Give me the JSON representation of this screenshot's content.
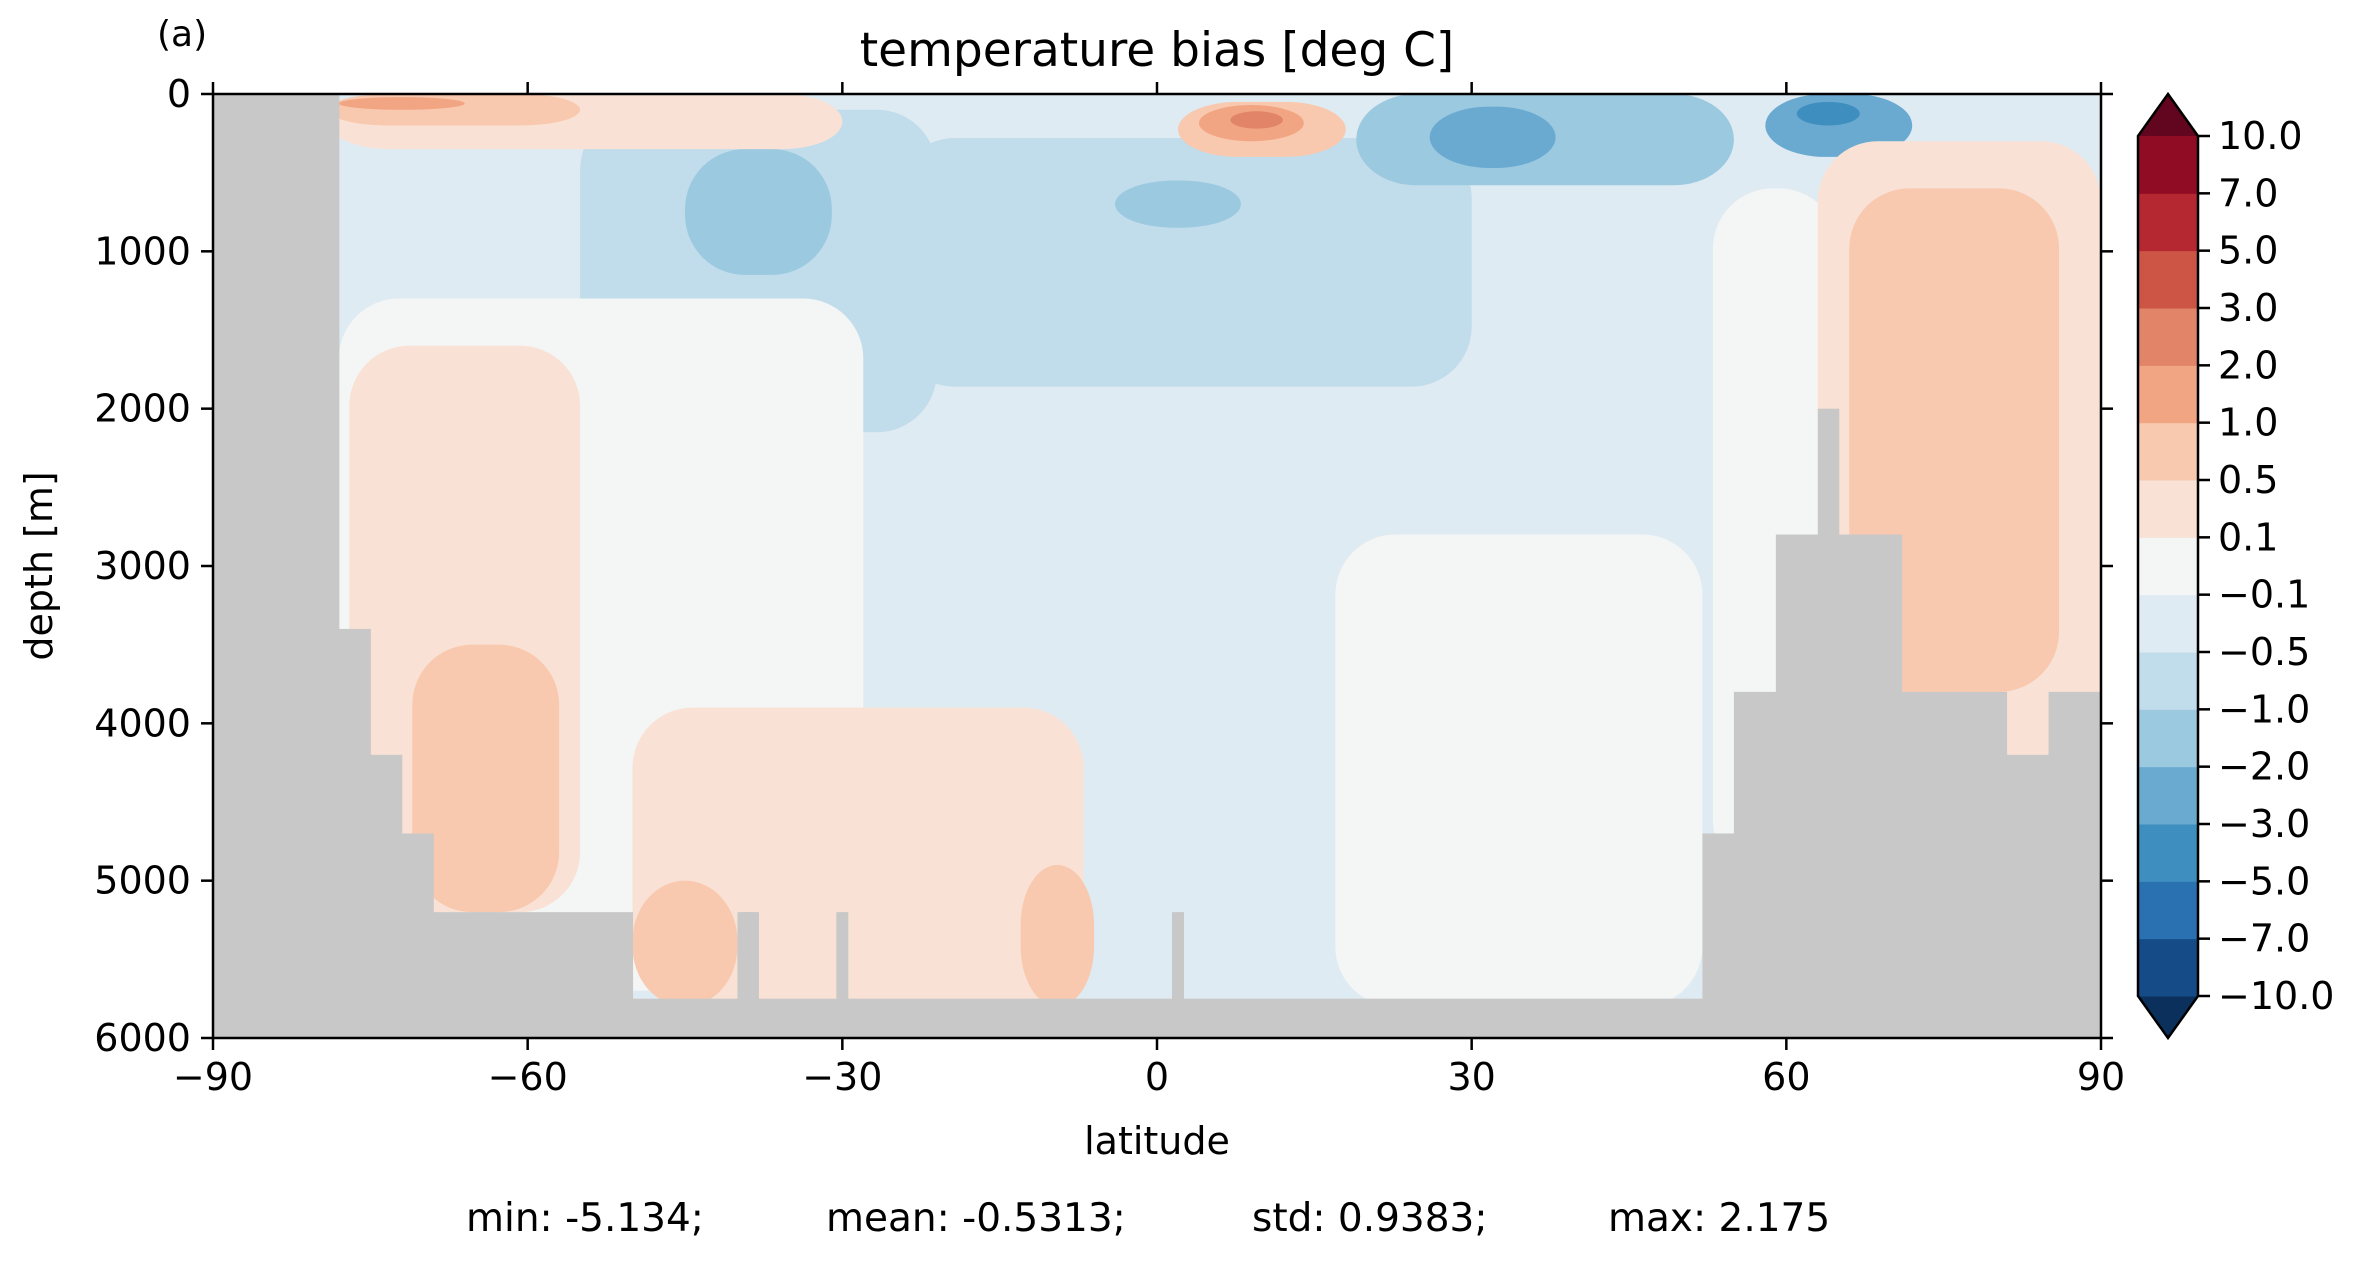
{
  "chart_data": {
    "type": "heatmap",
    "panel_label": "(a)",
    "title": "temperature bias [deg C]",
    "xlabel": "latitude",
    "ylabel": "depth [m]",
    "xlim": [
      -90,
      90
    ],
    "ylim": [
      6000,
      0
    ],
    "y_inverted": true,
    "xticks": [
      "−90",
      "−60",
      "−30",
      "0",
      "30",
      "60",
      "90"
    ],
    "xtick_values": [
      -90,
      -60,
      -30,
      0,
      30,
      60,
      90
    ],
    "yticks": [
      "0",
      "1000",
      "2000",
      "3000",
      "4000",
      "5000",
      "6000"
    ],
    "ytick_values": [
      0,
      1000,
      2000,
      3000,
      4000,
      5000,
      6000
    ],
    "mask_color": "#c8c8c8",
    "colorbar": {
      "extend": "both",
      "levels": [
        "−10.0",
        "−7.0",
        "−5.0",
        "−3.0",
        "−2.0",
        "−1.0",
        "−0.5",
        "−0.1",
        "0.1",
        "0.5",
        "1.0",
        "2.0",
        "3.0",
        "5.0",
        "7.0",
        "10.0"
      ],
      "level_values": [
        -10,
        -7,
        -5,
        -3,
        -2,
        -1,
        -0.5,
        -0.1,
        0.1,
        0.5,
        1,
        2,
        3,
        5,
        7,
        10
      ],
      "colors": [
        "#0b305b",
        "#154b87",
        "#2a71b2",
        "#3f8ec0",
        "#6aaad1",
        "#9bc9e0",
        "#c1dceb",
        "#dfebf2",
        "#f4f5f5",
        "#f9e2d5",
        "#f8c9ae",
        "#f2a583",
        "#e28467",
        "#cc5546",
        "#b52731",
        "#900c24",
        "#62051f"
      ]
    },
    "contours": [
      {
        "bin": "-0.5..-0.1",
        "value": -0.3,
        "region": "upper-ocean",
        "bounds_lat": [
          -78,
          90
        ],
        "bounds_depth": [
          0,
          3400
        ]
      },
      {
        "bin": "-1.0..-0.5",
        "value": -0.7,
        "region": "southern-thermocline",
        "bounds_lat": [
          -55,
          -21
        ],
        "bounds_depth": [
          100,
          2150
        ]
      },
      {
        "bin": "-1.0..-0.5",
        "value": -0.7,
        "region": "northern-thermocline",
        "bounds_lat": [
          -25,
          30
        ],
        "bounds_depth": [
          280,
          1860
        ]
      },
      {
        "bin": "-2.0..-1.0",
        "value": -1.5,
        "region": "southern-subsurface",
        "bounds_lat": [
          -45,
          -31
        ],
        "bounds_depth": [
          350,
          1150
        ]
      },
      {
        "bin": "-2.0..-1.0",
        "value": -1.5,
        "region": "northern-subsurface",
        "bounds_lat": [
          -4,
          8
        ],
        "bounds_depth": [
          550,
          850
        ]
      },
      {
        "bin": "-2.0..-1.0",
        "value": -1.5,
        "region": "northern-upper",
        "bounds_lat": [
          19,
          55
        ],
        "bounds_depth": [
          0,
          580
        ]
      },
      {
        "bin": "-3.0..-2.0",
        "value": -2.5,
        "region": "northern-upper",
        "bounds_lat": [
          26,
          38
        ],
        "bounds_depth": [
          80,
          470
        ]
      },
      {
        "bin": "-3.0..-2.0",
        "value": -2.5,
        "region": "arctic-upper",
        "bounds_lat": [
          58,
          72
        ],
        "bounds_depth": [
          0,
          400
        ]
      },
      {
        "bin": "-5.0..-3.0",
        "value": -4,
        "region": "arctic-upper",
        "bounds_lat": [
          61,
          67
        ],
        "bounds_depth": [
          50,
          200
        ]
      },
      {
        "bin": "-0.1..0.1",
        "value": 0,
        "region": "southern-deep",
        "bounds_lat": [
          -78,
          -28
        ],
        "bounds_depth": [
          1300,
          5700
        ]
      },
      {
        "bin": "-0.1..0.1",
        "value": 0,
        "region": "northern-deep",
        "bounds_lat": [
          17,
          52
        ],
        "bounds_depth": [
          2800,
          5800
        ]
      },
      {
        "bin": "-0.1..0.1",
        "value": 0,
        "region": "arctic-slope",
        "bounds_lat": [
          53,
          65
        ],
        "bounds_depth": [
          600,
          5000
        ]
      },
      {
        "bin": "0.1..0.5",
        "value": 0.3,
        "region": "southern-deep",
        "bounds_lat": [
          -77,
          -55
        ],
        "bounds_depth": [
          1600,
          5200
        ]
      },
      {
        "bin": "0.1..0.5",
        "value": 0.3,
        "region": "southern-abyss",
        "bounds_lat": [
          -50,
          -7
        ],
        "bounds_depth": [
          3900,
          5800
        ]
      },
      {
        "bin": "0.1..0.5",
        "value": 0.3,
        "region": "arctic-deep",
        "bounds_lat": [
          63,
          90
        ],
        "bounds_depth": [
          300,
          4300
        ]
      },
      {
        "bin": "0.1..0.5",
        "value": 0.3,
        "region": "southern-surface",
        "bounds_lat": [
          -79,
          -30
        ],
        "bounds_depth": [
          0,
          350
        ]
      },
      {
        "bin": "0.5..1.0",
        "value": 0.7,
        "region": "southern-deep",
        "bounds_lat": [
          -71,
          -57
        ],
        "bounds_depth": [
          3500,
          5200
        ]
      },
      {
        "bin": "0.5..1.0",
        "value": 0.7,
        "region": "southern-abyss",
        "bounds_lat": [
          -50,
          -40
        ],
        "bounds_depth": [
          5000,
          5800
        ]
      },
      {
        "bin": "0.5..1.0",
        "value": 0.7,
        "region": "equatorial-abyss",
        "bounds_lat": [
          -13,
          -6
        ],
        "bounds_depth": [
          4900,
          5800
        ]
      },
      {
        "bin": "0.5..1.0",
        "value": 0.7,
        "region": "arctic-deep",
        "bounds_lat": [
          66,
          86
        ],
        "bounds_depth": [
          600,
          3800
        ]
      },
      {
        "bin": "0.5..1.0",
        "value": 0.7,
        "region": "southern-surface",
        "bounds_lat": [
          -79,
          -55
        ],
        "bounds_depth": [
          0,
          200
        ]
      },
      {
        "bin": "0.5..1.0",
        "value": 0.7,
        "region": "equatorial-surface",
        "bounds_lat": [
          2,
          18
        ],
        "bounds_depth": [
          50,
          400
        ]
      },
      {
        "bin": "1.0..2.0",
        "value": 1.5,
        "region": "southern-surface",
        "bounds_lat": [
          -78,
          -66
        ],
        "bounds_depth": [
          20,
          100
        ]
      },
      {
        "bin": "1.0..2.0",
        "value": 1.5,
        "region": "equatorial-surface",
        "bounds_lat": [
          4,
          14
        ],
        "bounds_depth": [
          70,
          300
        ]
      },
      {
        "bin": "2.0..3.0",
        "value": 2.2,
        "region": "equatorial-surface",
        "bounds_lat": [
          7,
          12
        ],
        "bounds_depth": [
          110,
          220
        ]
      }
    ],
    "land_mask_depth_by_latitude": [
      {
        "lat_range": [
          -90,
          -78
        ],
        "depth": 0
      },
      {
        "lat_range": [
          -78,
          -77
        ],
        "depth": 3400
      },
      {
        "lat_range": [
          -77,
          -75
        ],
        "depth": 3400
      },
      {
        "lat_range": [
          -75,
          -72
        ],
        "depth": 4200
      },
      {
        "lat_range": [
          -72,
          -69
        ],
        "depth": 4700
      },
      {
        "lat_range": [
          -69,
          -59
        ],
        "depth": 5200
      },
      {
        "lat_range": [
          -59,
          -50
        ],
        "depth": 5200
      },
      {
        "lat_range": [
          -50,
          -40
        ],
        "depth": 5750
      },
      {
        "lat_range": [
          -40,
          -38
        ],
        "depth": 5200
      },
      {
        "lat_range": [
          -38,
          52
        ],
        "depth": 5750
      },
      {
        "lat_range": [
          52,
          55
        ],
        "depth": 4700
      },
      {
        "lat_range": [
          55,
          59
        ],
        "depth": 3800
      },
      {
        "lat_range": [
          59,
          63
        ],
        "depth": 2800
      },
      {
        "lat_range": [
          63,
          65
        ],
        "depth": 2000
      },
      {
        "lat_range": [
          65,
          71
        ],
        "depth": 2800
      },
      {
        "lat_range": [
          71,
          77
        ],
        "depth": 3800
      },
      {
        "lat_range": [
          77,
          81
        ],
        "depth": 3800
      },
      {
        "lat_range": [
          81,
          85
        ],
        "depth": 4200
      },
      {
        "lat_range": [
          85,
          90
        ],
        "depth": 3800
      }
    ],
    "seamounts": [
      {
        "lat": -39,
        "top_depth": 5200
      },
      {
        "lat": -30,
        "top_depth": 5200
      },
      {
        "lat": 2,
        "top_depth": 5200
      }
    ],
    "stats": {
      "min": "min: -5.134;",
      "mean": "mean: -0.5313;",
      "std": "std: 0.9383;",
      "max": "max: 2.175"
    }
  }
}
